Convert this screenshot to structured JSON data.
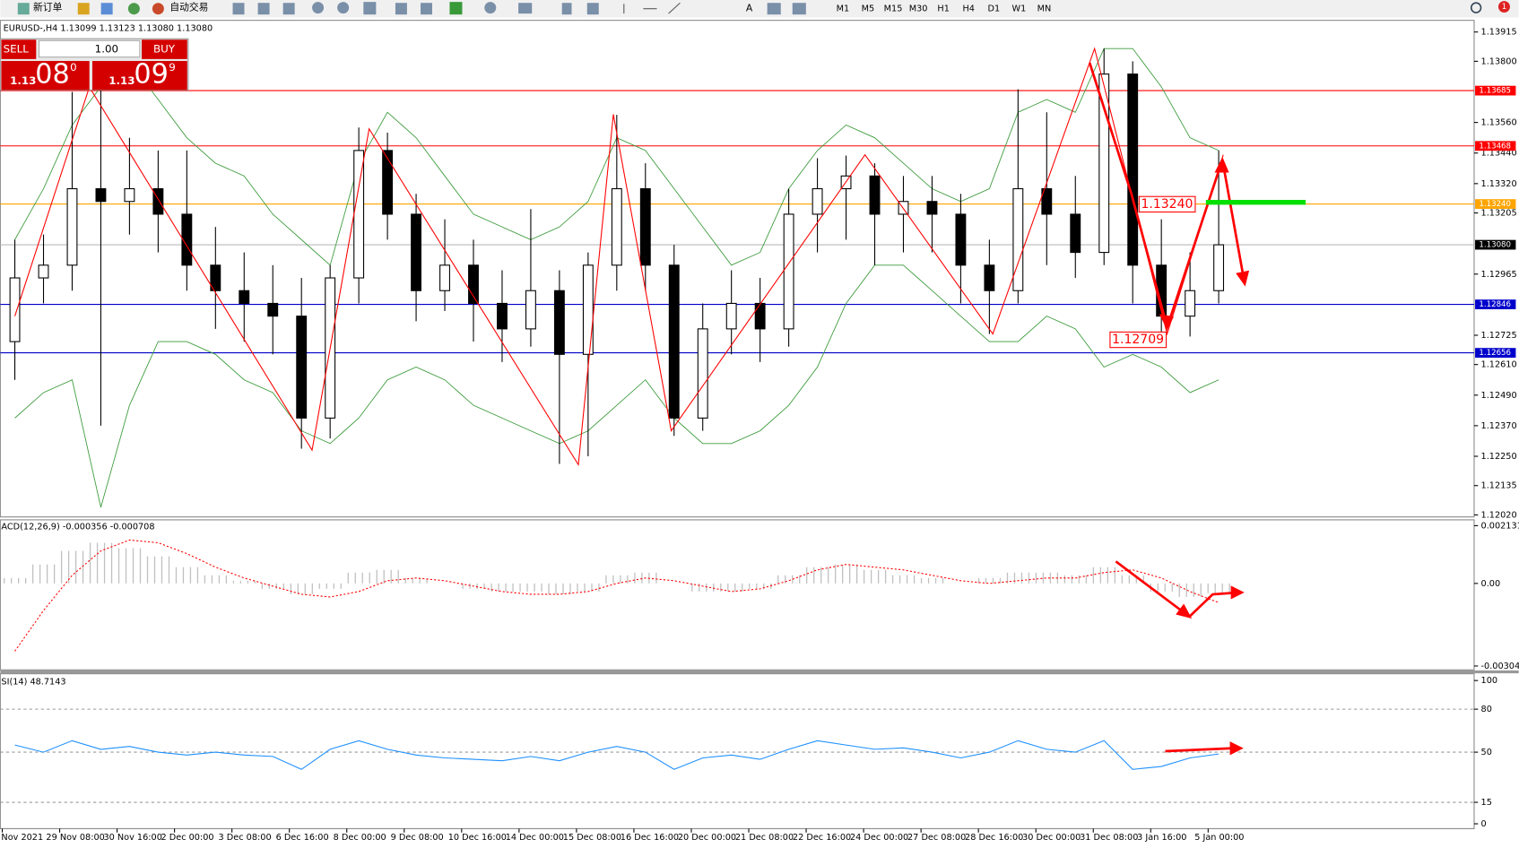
{
  "toolbar": {
    "new_order": "新订单",
    "auto_trading": "自动交易",
    "timeframes": [
      "M1",
      "M5",
      "M15",
      "M30",
      "H1",
      "H4",
      "D1",
      "W1",
      "MN"
    ],
    "notifications": "1"
  },
  "header": "EURUSD-,H4  1.13099 1.13123 1.13080 1.13080",
  "trade_panel": {
    "sell": "SELL",
    "buy": "BUY",
    "lot": "1.00",
    "bid_big": "1.13",
    "bid_pips": "08",
    "bid_frac": "0",
    "ask_big": "1.13",
    "ask_pips": "09",
    "ask_frac": "9"
  },
  "chart_data": [
    {
      "type": "candlestick",
      "ylim": [
        1.12012,
        1.13957
      ],
      "yticks": [
        {
          "value": 1.13915,
          "label": "1.13915"
        },
        {
          "value": 1.138,
          "label": "1.13800"
        },
        {
          "value": 1.1356,
          "label": "1.13560"
        },
        {
          "value": 1.1344,
          "label": "1.13440"
        },
        {
          "value": 1.1332,
          "label": "1.13320"
        },
        {
          "value": 1.13205,
          "label": "1.13205"
        },
        {
          "value": 1.12965,
          "label": "1.12965"
        },
        {
          "value": 1.12725,
          "label": "1.12725"
        },
        {
          "value": 1.1261,
          "label": "1.12610"
        },
        {
          "value": 1.1249,
          "label": "1.12490"
        },
        {
          "value": 1.1237,
          "label": "1.12370"
        },
        {
          "value": 1.1225,
          "label": "1.12250"
        },
        {
          "value": 1.12135,
          "label": "1.12135"
        },
        {
          "value": 1.1202,
          "label": "1.12020"
        }
      ],
      "levels": [
        {
          "value": 1.13685,
          "label": "1.13685",
          "color": "#ff0000"
        },
        {
          "value": 1.13468,
          "label": "1.13468",
          "color": "#ff0000"
        },
        {
          "value": 1.1324,
          "label": "1.13240",
          "color": "#ffa500"
        },
        {
          "value": 1.1308,
          "label": "1.13080",
          "color": "#000000"
        },
        {
          "value": 1.12846,
          "label": "1.12846",
          "color": "#0000cc"
        },
        {
          "value": 1.12656,
          "label": "1.12656",
          "color": "#0000cc"
        }
      ],
      "categories": [
        "Nov 2021",
        "29 Nov 08:00",
        "30 Nov 16:00",
        "2 Dec 00:00",
        "3 Dec 08:00",
        "6 Dec 16:00",
        "8 Dec 00:00",
        "9 Dec 08:00",
        "10 Dec 16:00",
        "14 Dec 00:00",
        "15 Dec 08:00",
        "16 Dec 16:00",
        "20 Dec 00:00",
        "21 Dec 08:00",
        "22 Dec 16:00",
        "24 Dec 00:00",
        "27 Dec 08:00",
        "28 Dec 16:00",
        "30 Dec 00:00",
        "31 Dec 08:00",
        "3 Jan 16:00",
        "5 Jan 00:00"
      ],
      "candles": [
        [
          1.127,
          1.131,
          1.1255,
          1.1295
        ],
        [
          1.1295,
          1.1312,
          1.1285,
          1.13
        ],
        [
          1.13,
          1.1368,
          1.129,
          1.133
        ],
        [
          1.133,
          1.1372,
          1.1237,
          1.1325
        ],
        [
          1.1325,
          1.135,
          1.1312,
          1.133
        ],
        [
          1.133,
          1.1345,
          1.1305,
          1.132
        ],
        [
          1.132,
          1.1345,
          1.129,
          1.13
        ],
        [
          1.13,
          1.1315,
          1.1275,
          1.129
        ],
        [
          1.129,
          1.1305,
          1.127,
          1.1285
        ],
        [
          1.1285,
          1.13,
          1.1265,
          1.128
        ],
        [
          1.128,
          1.1295,
          1.1228,
          1.124
        ],
        [
          1.124,
          1.13,
          1.1232,
          1.1295
        ],
        [
          1.1295,
          1.1354,
          1.1285,
          1.1345
        ],
        [
          1.1345,
          1.1352,
          1.131,
          1.132
        ],
        [
          1.132,
          1.1328,
          1.1278,
          1.129
        ],
        [
          1.129,
          1.1318,
          1.1282,
          1.13
        ],
        [
          1.13,
          1.131,
          1.127,
          1.1285
        ],
        [
          1.1285,
          1.1298,
          1.1262,
          1.1275
        ],
        [
          1.1275,
          1.1322,
          1.1268,
          1.129
        ],
        [
          1.129,
          1.1298,
          1.1222,
          1.1265
        ],
        [
          1.1265,
          1.1305,
          1.1225,
          1.13
        ],
        [
          1.13,
          1.1359,
          1.129,
          1.133
        ],
        [
          1.133,
          1.134,
          1.129,
          1.13
        ],
        [
          1.13,
          1.1308,
          1.1233,
          1.124
        ],
        [
          1.124,
          1.1285,
          1.1235,
          1.1275
        ],
        [
          1.1275,
          1.1298,
          1.1265,
          1.1285
        ],
        [
          1.1285,
          1.1295,
          1.1262,
          1.1275
        ],
        [
          1.1275,
          1.133,
          1.1268,
          1.132
        ],
        [
          1.132,
          1.1342,
          1.1305,
          1.133
        ],
        [
          1.133,
          1.1343,
          1.131,
          1.1335
        ],
        [
          1.1335,
          1.134,
          1.13,
          1.132
        ],
        [
          1.132,
          1.1335,
          1.1305,
          1.1325
        ],
        [
          1.1325,
          1.1335,
          1.1305,
          1.132
        ],
        [
          1.132,
          1.1328,
          1.1285,
          1.13
        ],
        [
          1.13,
          1.131,
          1.1273,
          1.129
        ],
        [
          1.129,
          1.1369,
          1.1285,
          1.133
        ],
        [
          1.133,
          1.136,
          1.13,
          1.132
        ],
        [
          1.132,
          1.1335,
          1.1295,
          1.1305
        ],
        [
          1.1305,
          1.1385,
          1.13,
          1.1375
        ],
        [
          1.1375,
          1.138,
          1.1285,
          1.13
        ],
        [
          1.13,
          1.1318,
          1.1271,
          1.128
        ],
        [
          1.128,
          1.1305,
          1.1272,
          1.129
        ],
        [
          1.129,
          1.1345,
          1.1285,
          1.1308
        ]
      ],
      "bollinger_upper": [
        1.131,
        1.133,
        1.1355,
        1.137,
        1.138,
        1.1365,
        1.135,
        1.134,
        1.1335,
        1.132,
        1.131,
        1.13,
        1.134,
        1.136,
        1.135,
        1.1335,
        1.132,
        1.1315,
        1.131,
        1.1315,
        1.1325,
        1.135,
        1.1345,
        1.133,
        1.1315,
        1.13,
        1.1305,
        1.133,
        1.1345,
        1.1355,
        1.135,
        1.134,
        1.133,
        1.1325,
        1.133,
        1.136,
        1.1365,
        1.136,
        1.1385,
        1.1385,
        1.137,
        1.135,
        1.1345
      ],
      "bollinger_lower": [
        1.124,
        1.125,
        1.1255,
        1.1205,
        1.1245,
        1.127,
        1.127,
        1.1265,
        1.1255,
        1.125,
        1.1235,
        1.123,
        1.124,
        1.1255,
        1.126,
        1.1255,
        1.1245,
        1.124,
        1.1235,
        1.123,
        1.1235,
        1.1245,
        1.1255,
        1.124,
        1.123,
        1.123,
        1.1235,
        1.1245,
        1.126,
        1.1285,
        1.13,
        1.13,
        1.129,
        1.128,
        1.127,
        1.127,
        1.128,
        1.1275,
        1.126,
        1.1265,
        1.126,
        1.125,
        1.1255
      ],
      "zigzag": {
        "x": [
          0,
          2.6,
          10.37,
          12.36,
          19.66,
          20.88,
          22.9,
          29.66,
          34.12,
          37.67,
          40.2,
          42.16
        ],
        "values": [
          1.128,
          1.13699,
          1.12274,
          1.13535,
          1.12217,
          1.13592,
          1.1235,
          1.13433,
          1.1273,
          1.1385,
          1.1273,
          1.13433
        ]
      },
      "annotations": [
        {
          "text": "1.13240"
        },
        {
          "text": "1.12709"
        }
      ]
    },
    {
      "type": "macd",
      "label": "ACD(12,26,9) -0.000356 -0.000708",
      "ylim": [
        -0.003189,
        0.00231
      ],
      "yticks": [
        {
          "value": 0.002131,
          "label": "0.002131"
        },
        {
          "value": 0,
          "label": "0.00"
        },
        {
          "value": -0.003046,
          "label": "-0.003046"
        }
      ],
      "histogram": [
        0.0002,
        0.0007,
        0.0012,
        0.0015,
        0.0013,
        0.001,
        0.0006,
        0.0003,
        0.0001,
        -0.0002,
        -0.0004,
        -0.0002,
        0.0004,
        0.0005,
        0.0002,
        0.0,
        -0.0002,
        -0.0003,
        -0.0003,
        -0.0004,
        -0.0003,
        0.0003,
        0.0004,
        0.0,
        -0.0003,
        -0.0003,
        -0.0002,
        0.0003,
        0.0006,
        0.0007,
        0.0005,
        0.0003,
        0.0002,
        0.0,
        0.0002,
        0.0004,
        0.0004,
        0.0003,
        0.0006,
        0.0003,
        -0.0003,
        -0.0005,
        -0.000356
      ],
      "signal": [
        -0.0025,
        -0.001,
        0.0003,
        0.0012,
        0.0016,
        0.0015,
        0.0011,
        0.0006,
        0.0002,
        -0.0001,
        -0.0004,
        -0.0005,
        -0.0003,
        0.0001,
        0.0002,
        0.0001,
        -0.0001,
        -0.0003,
        -0.0004,
        -0.0004,
        -0.0003,
        0.0,
        0.0002,
        0.0001,
        -0.0001,
        -0.0003,
        -0.0002,
        0.0001,
        0.0005,
        0.0007,
        0.0006,
        0.0005,
        0.0003,
        0.0001,
        0.0,
        0.0001,
        0.0002,
        0.0002,
        0.0004,
        0.0005,
        0.0002,
        -0.0003,
        -0.000708
      ]
    },
    {
      "type": "line",
      "label": "SI(14) 48.7143",
      "color": "#1e90ff",
      "ylim": [
        0,
        100
      ],
      "yticks": [
        100,
        80,
        50,
        15,
        0
      ],
      "values": [
        55,
        50,
        58,
        52,
        54,
        50,
        48,
        50,
        48,
        47,
        38,
        52,
        58,
        52,
        48,
        46,
        45,
        44,
        47,
        44,
        50,
        54,
        50,
        38,
        46,
        48,
        45,
        52,
        58,
        55,
        52,
        53,
        50,
        46,
        50,
        58,
        52,
        50,
        58,
        38,
        40,
        46,
        48.7143
      ]
    }
  ]
}
